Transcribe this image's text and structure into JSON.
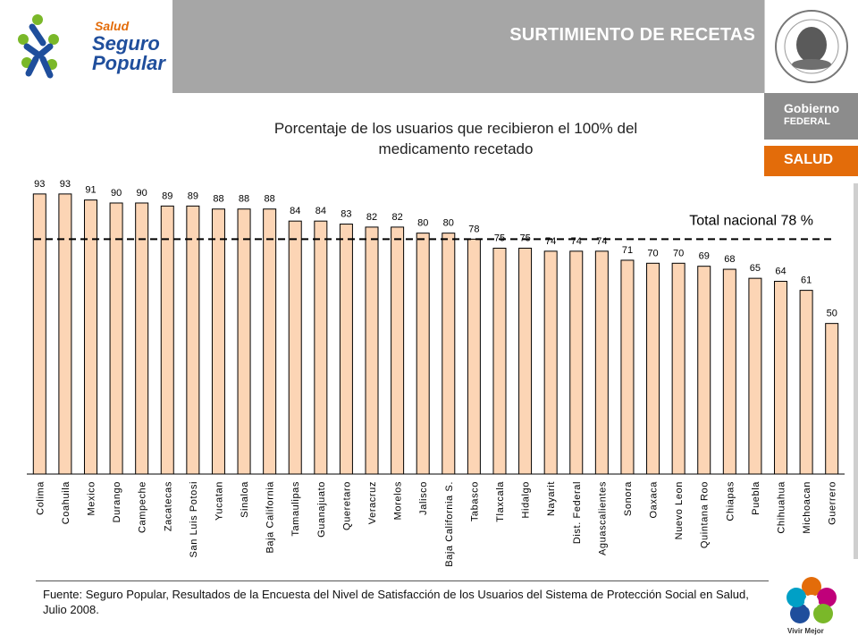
{
  "brand": {
    "line1": "Salud",
    "line2": "Seguro",
    "line3": "Popular",
    "colors": {
      "blue": "#1f4e9c",
      "green": "#7ab829",
      "orange": "#e36c0a"
    }
  },
  "header": {
    "title": "SURTIMIENTO DE RECETAS"
  },
  "side": {
    "gobierno_line1": "Gobierno",
    "gobierno_line2": "FEDERAL",
    "salud": "SALUD",
    "vivir": "Vivir Mejor"
  },
  "chart_data": {
    "type": "bar",
    "title": "Porcentaje de los usuarios que recibieron el 100% del medicamento recetado",
    "title_line1": "Porcentaje de los usuarios que recibieron el 100% del",
    "title_line2": "medicamento recetado",
    "categories": [
      "Colima",
      "Coahuila",
      "Mexico",
      "Durango",
      "Campeche",
      "Zacatecas",
      "San Luis Potosi",
      "Yucatan",
      "Sinaloa",
      "Baja California",
      "Tamaulipas",
      "Guanajuato",
      "Queretaro",
      "Veracruz",
      "Morelos",
      "Jalisco",
      "Baja California S.",
      "Tabasco",
      "Tlaxcala",
      "Hidalgo",
      "Nayarit",
      "Dist. Federal",
      "Aguascalientes",
      "Sonora",
      "Oaxaca",
      "Nuevo Leon",
      "Quintana Roo",
      "Chiapas",
      "Puebla",
      "Chihuahua",
      "Michoacan",
      "Guerrero"
    ],
    "values": [
      93,
      93,
      91,
      90,
      90,
      89,
      89,
      88,
      88,
      88,
      84,
      84,
      83,
      82,
      82,
      80,
      80,
      78,
      75,
      75,
      74,
      74,
      74,
      71,
      70,
      70,
      69,
      68,
      65,
      64,
      61,
      50
    ],
    "reference_line": {
      "value": 78,
      "label": "Total nacional 78 %"
    },
    "ylim": [
      0,
      100
    ],
    "bar_color": "#fcd5b5",
    "bar_edge": "#000000",
    "legend": "none"
  },
  "footer": {
    "source": "Fuente: Seguro Popular, Resultados de la Encuesta del Nivel de Satisfacción de los Usuarios del Sistema de Protección Social en Salud, Julio 2008."
  }
}
